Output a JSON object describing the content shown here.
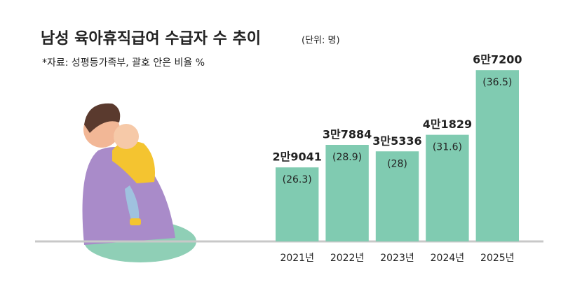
{
  "chart_data": {
    "type": "bar",
    "title": "남성 육아휴직급여 수급자 수 추이",
    "subtitle": "(단위: 명)",
    "source": "*자료: 성평등가족부, 괄호 안은 비율 %",
    "categories": [
      "2021년",
      "2022년",
      "2023년",
      "2024년",
      "2025년"
    ],
    "values": [
      29041,
      37884,
      35336,
      41829,
      67200
    ],
    "value_labels": [
      "2만9041",
      "3만7884",
      "3만5336",
      "4만1829",
      "6만7200"
    ],
    "shares": [
      26.3,
      28.9,
      28,
      31.6,
      36.5
    ],
    "share_labels": [
      "(26.3)",
      "(28.9)",
      "(28)",
      "(31.6)",
      "(36.5)"
    ],
    "color": "#80cbb1",
    "ylim": [
      0,
      70000
    ]
  }
}
